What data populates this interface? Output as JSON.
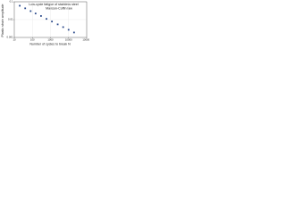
{
  "chart_data": {
    "type": "scatter",
    "title": "Low-cycle fatigue of stainless steel",
    "subtitle": "Manson-Coffin law",
    "x_label": "Number of cycles to break N",
    "y_label": "Plastic strain amplitude",
    "log_x": true,
    "log_y": true,
    "grid": true,
    "xlim": [
      10,
      100000
    ],
    "xticks": [
      10,
      100,
      1000,
      10000,
      100000
    ],
    "ylim": [
      0.001,
      0.1
    ],
    "yticks": [
      0.001,
      0.01,
      0.1
    ],
    "series": [
      {
        "name": "stainless steel",
        "color": "#2b4a8b",
        "x": [
          20,
          40,
          80,
          150,
          300,
          600,
          1200,
          2500,
          5000,
          10000,
          20000
        ],
        "values": [
          0.06,
          0.043,
          0.03,
          0.022,
          0.016,
          0.011,
          0.0078,
          0.0054,
          0.0038,
          0.0027,
          0.0019
        ]
      }
    ]
  }
}
